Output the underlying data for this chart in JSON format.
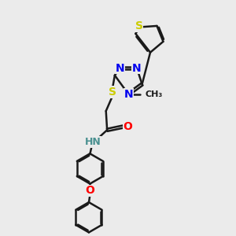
{
  "background_color": "#ebebeb",
  "bond_color": "#1a1a1a",
  "bond_width": 1.8,
  "atom_colors": {
    "N": "#0000ee",
    "S": "#cccc00",
    "O": "#ff0000",
    "H": "#4a9090"
  },
  "font_size": 10,
  "font_size_me": 8
}
